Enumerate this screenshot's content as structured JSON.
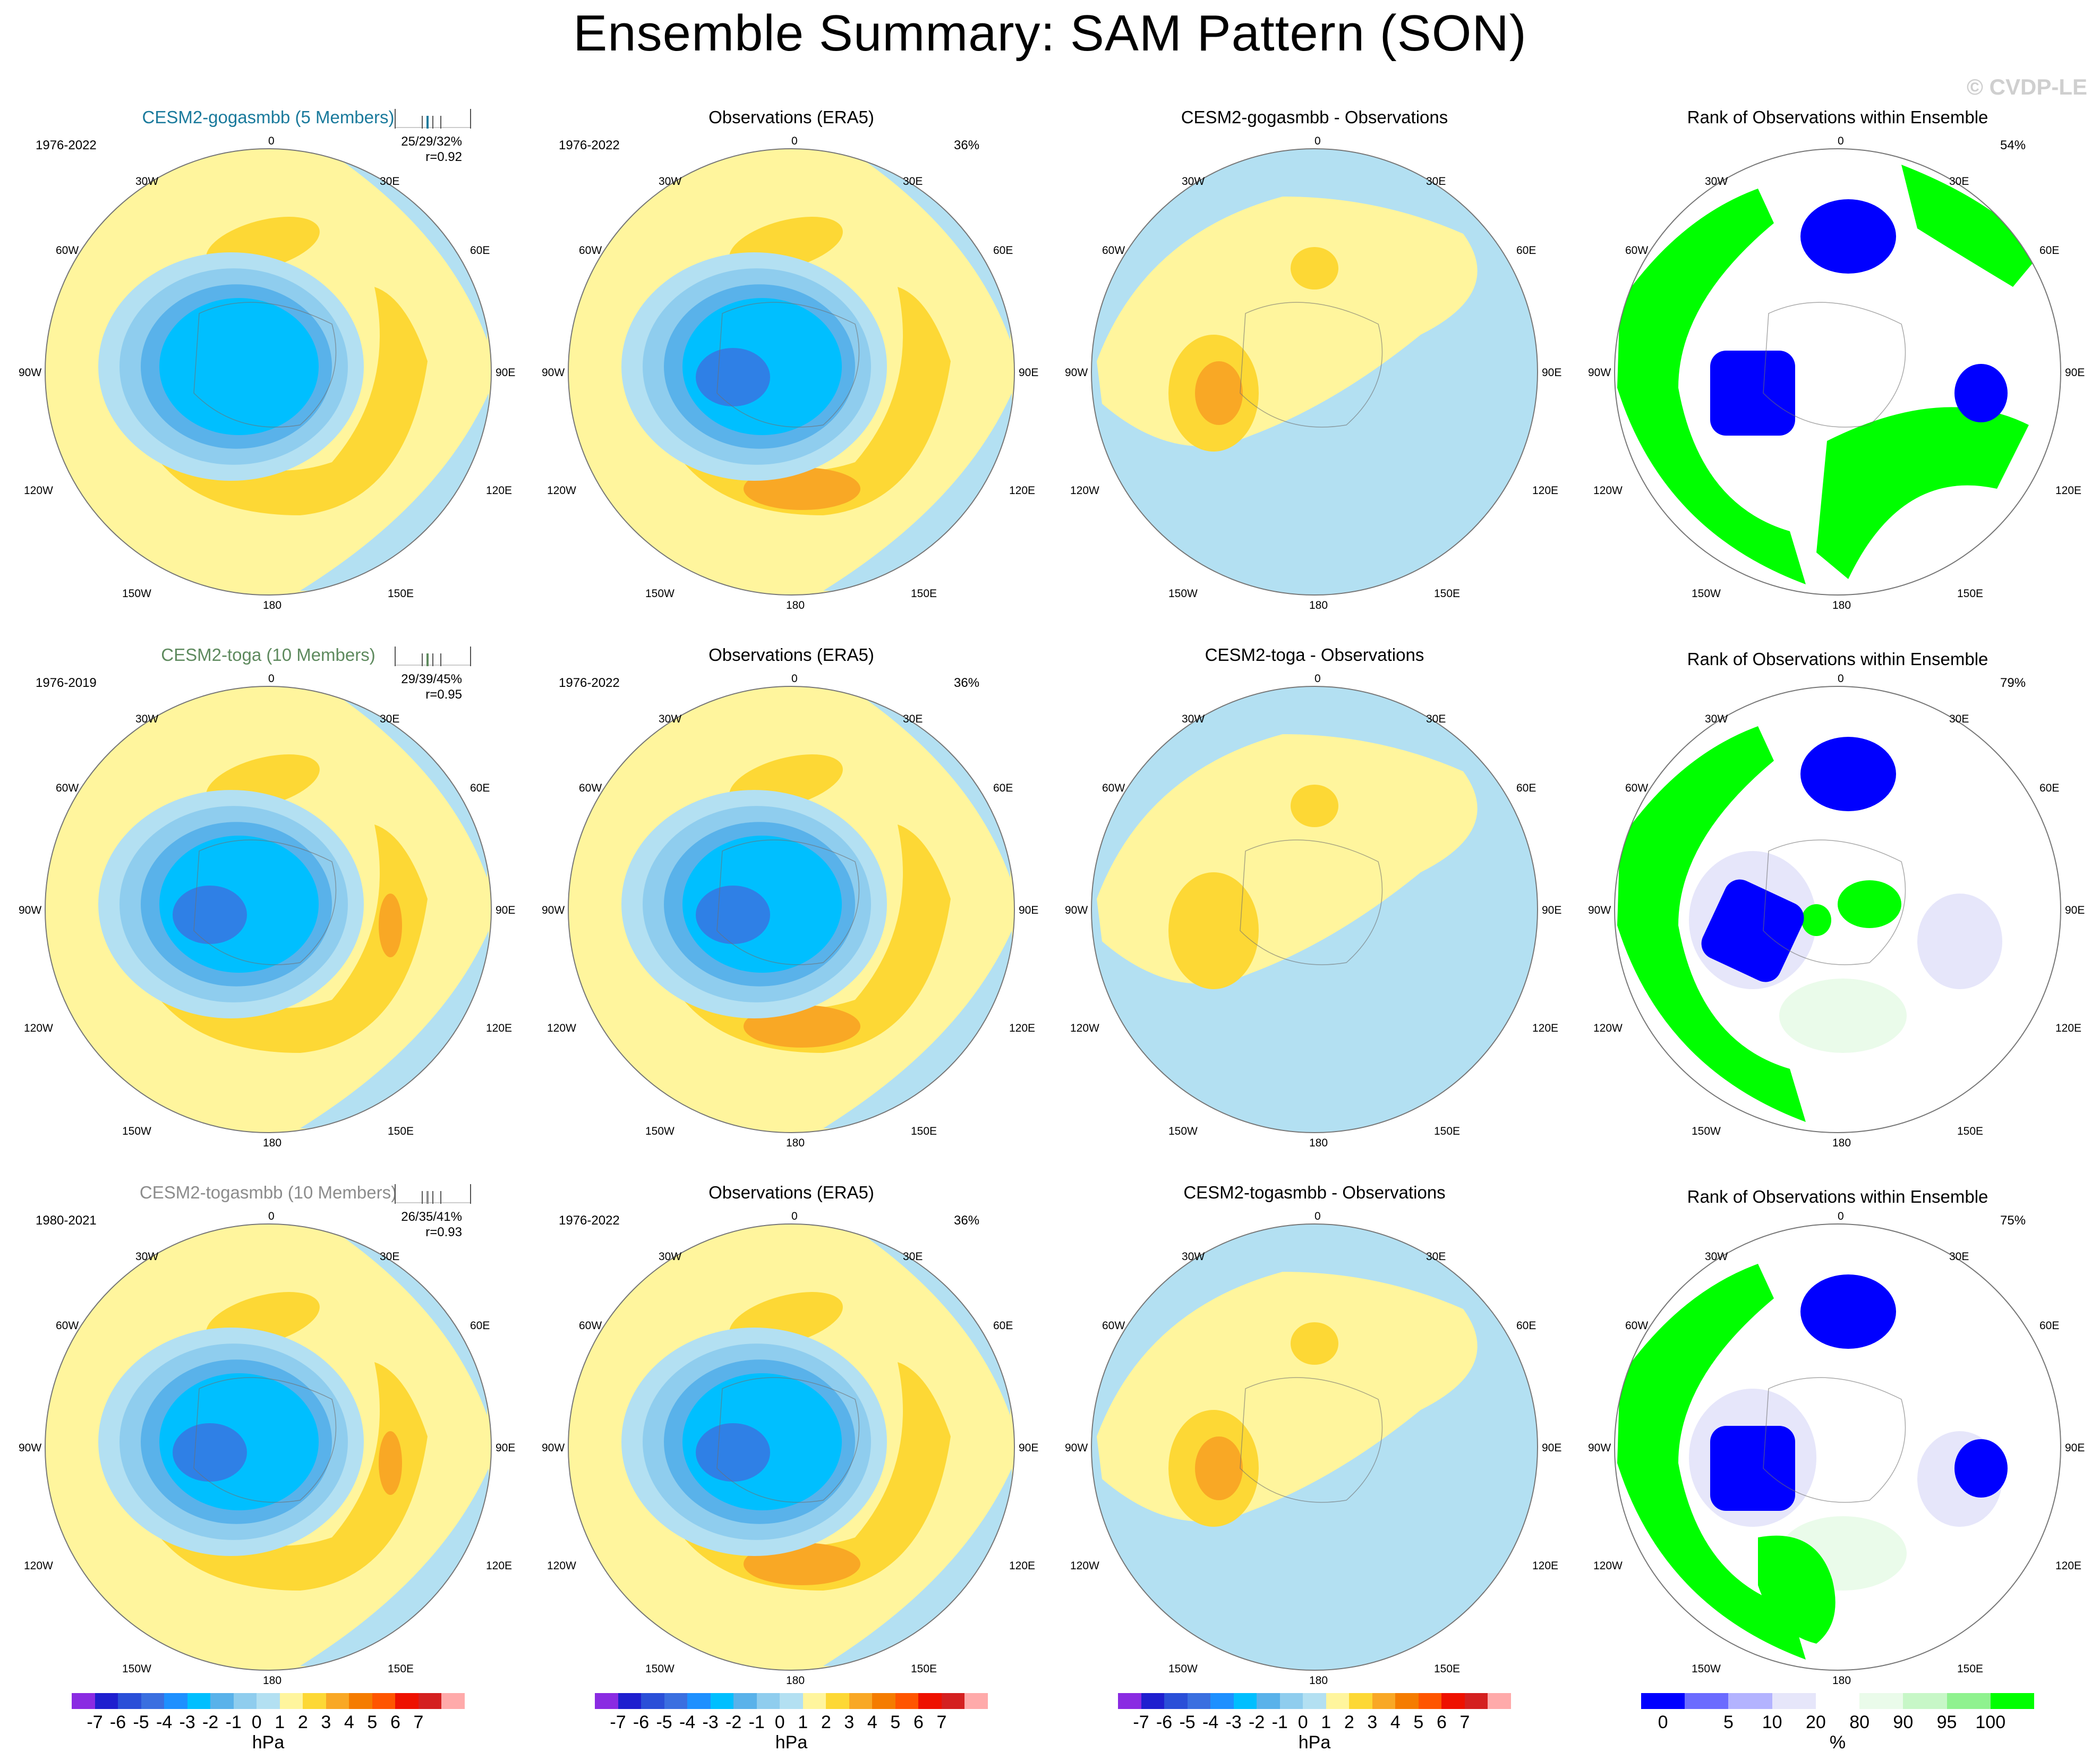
{
  "title": "Ensemble Summary: SAM Pattern (SON)",
  "watermark": "© CVDP-LE",
  "colors": {
    "pos1": "#fff59d",
    "pos2": "#fdd835",
    "pos3": "#f9a825",
    "pos4": "#f57c00",
    "neg1": "#b3e0f2",
    "neg2": "#8fcdee",
    "neg3": "#59b2ea",
    "neg4": "#00bfff",
    "neg5": "#2f80e6",
    "neg6": "#3a50d0",
    "rank_blue": "#0000ff",
    "rank_green": "#00ff00",
    "rank_lavender": "#e6e6fa",
    "rank_lightgreen": "#eafbea",
    "ocean_white": "#ffffff"
  },
  "lon_labels": {
    "top": "0",
    "top_left": "30W",
    "top_right": "30E",
    "ul": "60W",
    "ur": "60E",
    "left": "90W",
    "right": "90E",
    "ll": "120W",
    "lr": "120E",
    "bot_left": "150W",
    "bot_right": "150E",
    "bottom": "180"
  },
  "rows": [
    {
      "model_title": "CESM2-gogasmbb (5 Members)",
      "model_color": "#1a7a9c",
      "model_period": "1976-2022",
      "stats_line1": "25/29/32%",
      "stats_line2": "r=0.92",
      "obs_title": "Observations (ERA5)",
      "obs_period": "1976-2022",
      "obs_pct": "36%",
      "diff_title": "CESM2-gogasmbb - Observations",
      "rank_title": "Rank of Observations within Ensemble",
      "rank_pct": "54%"
    },
    {
      "model_title": "CESM2-toga (10 Members)",
      "model_color": "#5e8a5e",
      "model_period": "1976-2019",
      "stats_line1": "29/39/45%",
      "stats_line2": "r=0.95",
      "obs_title": "Observations (ERA5)",
      "obs_period": "1976-2022",
      "obs_pct": "36%",
      "diff_title": "CESM2-toga - Observations",
      "rank_title": "Rank of Observations within Ensemble",
      "rank_pct": "79%"
    },
    {
      "model_title": "CESM2-togasmbb (10 Members)",
      "model_color": "#8c8c8c",
      "model_period": "1980-2021",
      "stats_line1": "26/35/41%",
      "stats_line2": "r=0.93",
      "obs_title": "Observations (ERA5)",
      "obs_period": "1976-2022",
      "obs_pct": "36%",
      "diff_title": "CESM2-togasmbb - Observations",
      "rank_title": "Rank of Observations within Ensemble",
      "rank_pct": "75%"
    }
  ],
  "chart_data": [
    {
      "type": "colorbar",
      "unit": "hPa",
      "labels": [
        "-7",
        "-6",
        "-5",
        "-4",
        "-3",
        "-2",
        "-1",
        "0",
        "1",
        "2",
        "3",
        "4",
        "5",
        "6",
        "7"
      ],
      "colors": [
        "#8a2be2",
        "#1f1fcf",
        "#2a4fd8",
        "#3a6fe0",
        "#1e90ff",
        "#00bfff",
        "#59b2ea",
        "#8fcdee",
        "#b3e0f2",
        "#fff59d",
        "#fdd835",
        "#f9a825",
        "#f57c00",
        "#ff5500",
        "#ee1100",
        "#d42020",
        "#ffaaaa"
      ]
    },
    {
      "type": "colorbar",
      "unit": "%",
      "labels": [
        "0",
        "5",
        "10",
        "20",
        "80",
        "90",
        "95",
        "100"
      ],
      "colors": [
        "#0000ff",
        "#6b6bff",
        "#b3b3ff",
        "#e6e6fa",
        "#ffffff",
        "#eafbea",
        "#c7f7c7",
        "#8ff28f",
        "#00ff00"
      ]
    }
  ]
}
